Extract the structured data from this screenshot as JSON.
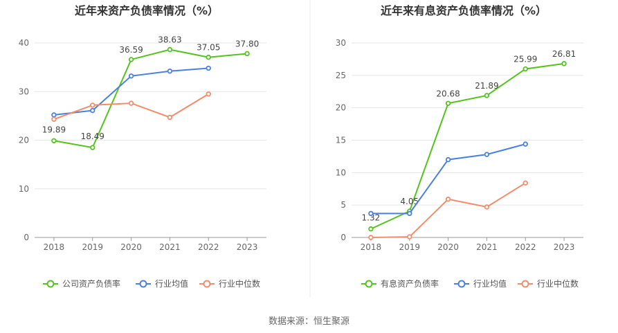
{
  "chart_data": [
    {
      "type": "line",
      "title": "近年来资产负债率情况（%）",
      "categories": [
        "2018",
        "2019",
        "2020",
        "2021",
        "2022",
        "2023"
      ],
      "ylim": [
        0,
        40
      ],
      "yticks": [
        0,
        10,
        20,
        30,
        40
      ],
      "grid": true,
      "legend_position": "bottom",
      "series": [
        {
          "name": "公司资产负债率",
          "color": "#52c41a",
          "values": [
            19.89,
            18.49,
            36.59,
            38.63,
            37.05,
            37.8
          ],
          "labels": [
            "19.89",
            "18.49",
            "36.59",
            "38.63",
            "37.05",
            "37.80"
          ]
        },
        {
          "name": "行业均值",
          "color": "#4a7fe0",
          "values": [
            25.2,
            26.1,
            33.2,
            34.2,
            34.8,
            null
          ]
        },
        {
          "name": "行业中位数",
          "color": "#f28c6b",
          "values": [
            24.3,
            27.2,
            27.6,
            24.7,
            29.5,
            null
          ]
        }
      ]
    },
    {
      "type": "line",
      "title": "近年来有息资产负债率情况（%）",
      "categories": [
        "2018",
        "2019",
        "2020",
        "2021",
        "2022",
        "2023"
      ],
      "ylim": [
        0,
        30
      ],
      "yticks": [
        0,
        5,
        10,
        15,
        20,
        25,
        30
      ],
      "grid": true,
      "legend_position": "bottom",
      "series": [
        {
          "name": "有息资产负债率",
          "color": "#52c41a",
          "values": [
            1.32,
            4.05,
            20.68,
            21.89,
            25.99,
            26.81
          ],
          "labels": [
            "1.32",
            "4.05",
            "20.68",
            "21.89",
            "25.99",
            "26.81"
          ]
        },
        {
          "name": "行业均值",
          "color": "#4a7fe0",
          "values": [
            3.7,
            3.7,
            12.0,
            12.8,
            14.4,
            null
          ]
        },
        {
          "name": "行业中位数",
          "color": "#f28c6b",
          "values": [
            0.0,
            0.1,
            5.9,
            4.7,
            8.4,
            null
          ]
        }
      ]
    }
  ],
  "source": "数据来源：恒生聚源"
}
